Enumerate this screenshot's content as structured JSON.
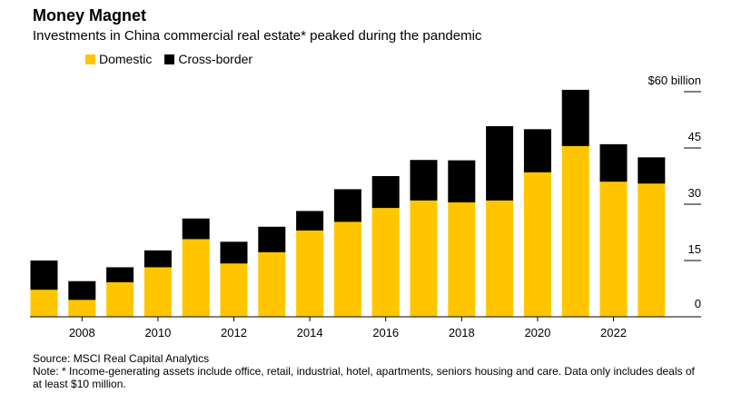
{
  "title": "Money Magnet",
  "subtitle": "Investments in China commercial real estate* peaked during the pandemic",
  "legend": [
    {
      "label": "Domestic",
      "color": "#FFC600"
    },
    {
      "label": "Cross-border",
      "color": "#000000"
    }
  ],
  "source": "Source: MSCI Real Capital Analytics",
  "note": "Note: * Income-generating assets include office, retail, industrial, hotel, apartments, seniors housing and care. Data only includes deals of at least $10 million.",
  "chart_data": {
    "type": "bar",
    "stacked": true,
    "title": "Money Magnet",
    "ylabel": "$ billion",
    "ylim": [
      0,
      60
    ],
    "yticks": [
      {
        "value": 0,
        "label": "0"
      },
      {
        "value": 15,
        "label": "15"
      },
      {
        "value": 30,
        "label": "30"
      },
      {
        "value": 45,
        "label": "45"
      },
      {
        "value": 60,
        "label": "$60 billion"
      }
    ],
    "x_tick_labels": [
      "2008",
      "2010",
      "2012",
      "2014",
      "2016",
      "2018",
      "2020",
      "2022"
    ],
    "categories": [
      "2007",
      "2008",
      "2009",
      "2010",
      "2011",
      "2012",
      "2013",
      "2014",
      "2015",
      "2016",
      "2017",
      "2018",
      "2019",
      "2020",
      "2021",
      "2022",
      "2023"
    ],
    "series": [
      {
        "name": "Domestic",
        "color": "#FFC600",
        "values": [
          7.2,
          4.5,
          9.2,
          13.2,
          20.7,
          14.2,
          17.2,
          23.0,
          25.3,
          29.0,
          31.0,
          30.5,
          31.0,
          38.5,
          45.5,
          36.0,
          35.5
        ]
      },
      {
        "name": "Cross-border",
        "color": "#000000",
        "values": [
          7.8,
          5.0,
          4.0,
          4.5,
          5.5,
          5.8,
          6.8,
          5.2,
          8.7,
          8.5,
          10.8,
          11.2,
          19.8,
          11.5,
          15.0,
          10.0,
          7.0
        ]
      }
    ]
  }
}
